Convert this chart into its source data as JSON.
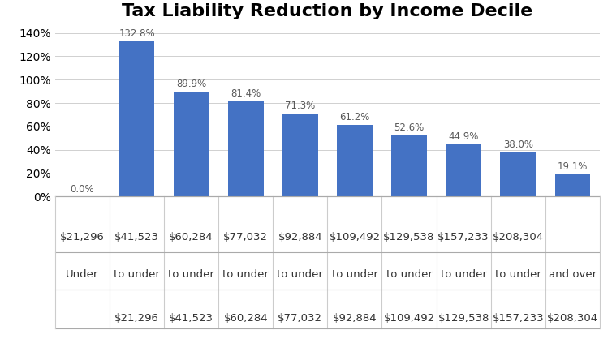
{
  "title": "Tax Liability Reduction by Income Decile",
  "values": [
    0.0,
    132.8,
    89.9,
    81.4,
    71.3,
    61.2,
    52.6,
    44.9,
    38.0,
    19.1
  ],
  "bar_color": "#4472C4",
  "ylim": [
    0,
    145
  ],
  "yticks": [
    0,
    20,
    40,
    60,
    80,
    100,
    120,
    140
  ],
  "ytick_labels": [
    "0%",
    "20%",
    "40%",
    "60%",
    "80%",
    "100%",
    "120%",
    "140%"
  ],
  "row1": [
    "$21,296",
    "$41,523",
    "$60,284",
    "$77,032",
    "$92,884",
    "$109,492",
    "$129,538",
    "$157,233",
    "$208,304",
    ""
  ],
  "row2": [
    "Under",
    "to under",
    "to under",
    "to under",
    "to under",
    "to under",
    "to under",
    "to under",
    "to under",
    "and over"
  ],
  "row3": [
    "",
    "$21,296",
    "$41,523",
    "$60,284",
    "$77,032",
    "$92,884",
    "$109,492",
    "$129,538",
    "$157,233",
    "$208,304"
  ],
  "title_fontsize": 16,
  "bar_label_fontsize": 8.5,
  "bar_label_color": "#595959",
  "background_color": "#ffffff",
  "tick_fontsize": 9.5
}
